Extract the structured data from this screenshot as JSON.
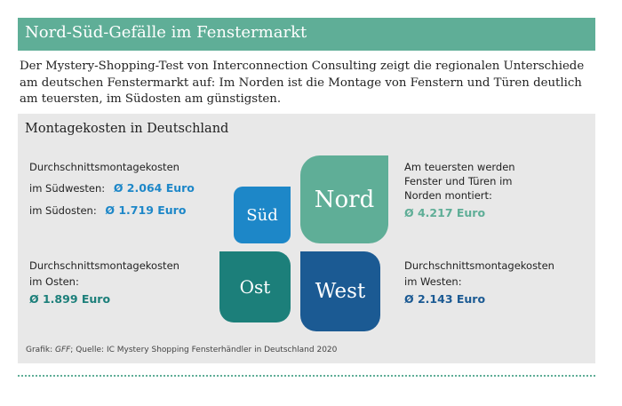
{
  "header": {
    "title": "Nord-Süd-Gefälle im Fenstermarkt"
  },
  "intro": {
    "text": "Der Mystery-Shopping-Test von Interconnection Consulting zeigt die regionalen Unterschiede am deutschen Fenstermarkt auf: Im Norden ist die Montage von Fenstern und Türen deutlich am teuersten, im Südosten am günstigsten."
  },
  "panel": {
    "title": "Montagekosten in Deutschland",
    "south": {
      "heading": "Durchschnittsmontagekosten",
      "southwest_label": "im Südwesten:",
      "southwest_value": "Ø 2.064 Euro",
      "southeast_label": "im Südosten:",
      "southeast_value": "Ø 1.719 Euro"
    },
    "east": {
      "heading": "Durchschnittsmontagekosten",
      "label": "im Osten:",
      "value": "Ø 1.899 Euro"
    },
    "north": {
      "line1": "Am teuersten werden",
      "line2": "Fenster und Türen im",
      "line3": "Norden montiert:",
      "value": "Ø 4.217 Euro"
    },
    "west": {
      "heading": "Durchschnittsmontagekosten",
      "label": "im Westen:",
      "value": "Ø 2.143 Euro"
    },
    "tiles": {
      "sued": "Süd",
      "nord": "Nord",
      "ost": "Ost",
      "west": "West"
    },
    "source": {
      "prefix": "Grafik: ",
      "gff": "GFF",
      "rest": "; Quelle: IC Mystery Shopping Fensterhändler in Deutschland 2020"
    }
  },
  "colors": {
    "green": "#5fae97",
    "blue": "#1d87c8",
    "teal": "#1c7f7a",
    "navy": "#1b5a93",
    "panel": "#e8e8e8"
  }
}
